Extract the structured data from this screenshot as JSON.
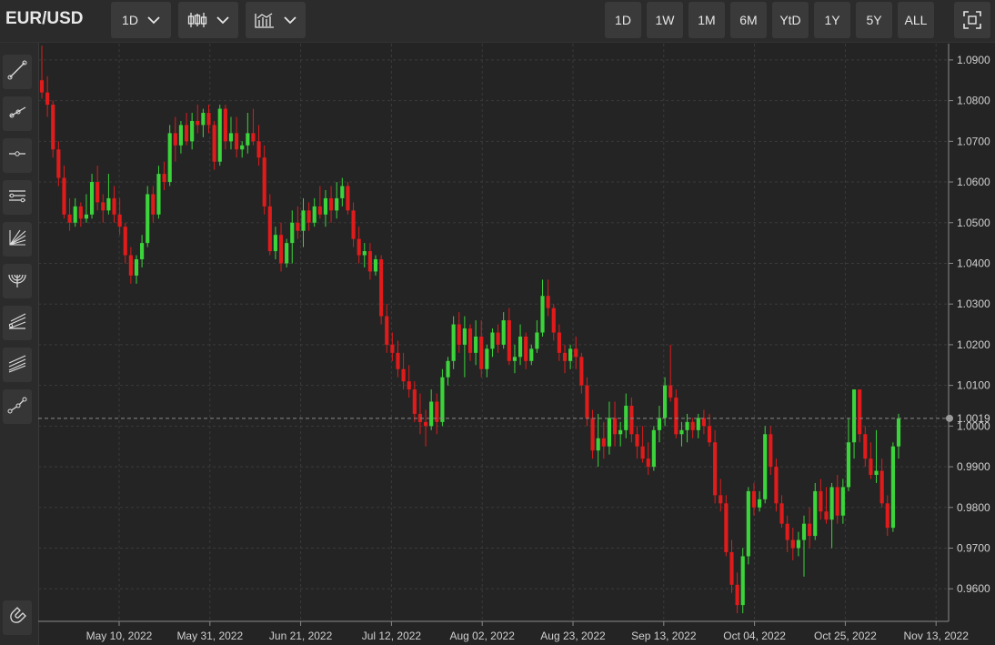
{
  "symbol": "EUR/USD",
  "toolbar": {
    "interval_label": "1D",
    "chart_type_icon": "candlestick-icon",
    "indicators_icon": "indicators-icon",
    "ranges": [
      "1D",
      "1W",
      "1M",
      "6M",
      "YtD",
      "1Y",
      "5Y",
      "ALL"
    ],
    "fullscreen_icon": "fullscreen-icon"
  },
  "sidebar_tools": [
    "trend-line-icon",
    "ray-icon",
    "horizontal-line-icon",
    "parallel-channel-icon",
    "gann-fan-icon",
    "arc-icon",
    "pitchfork-icon",
    "fib-channel-icon",
    "path-icon"
  ],
  "magnet_icon": "magnet-icon",
  "colors": {
    "up": "#3bd43b",
    "down": "#e01b1b",
    "grid": "#3a3a3a",
    "last_price_line": "#8a8a8a"
  },
  "chart_data": {
    "type": "candlestick",
    "symbol": "EUR/USD",
    "interval": "1D",
    "ylim": [
      0.952,
      1.094
    ],
    "yticks": [
      "1.0900",
      "1.0800",
      "1.0700",
      "1.0600",
      "1.0500",
      "1.0400",
      "1.0300",
      "1.0200",
      "1.0100",
      "1.0000",
      "0.9900",
      "0.9800",
      "0.9700",
      "0.9600"
    ],
    "last_price": "1.0019",
    "grid": true,
    "xticks": [
      "May 10, 2022",
      "May 31, 2022",
      "Jun 21, 2022",
      "Jul 12, 2022",
      "Aug 02, 2022",
      "Aug 23, 2022",
      "Sep 13, 2022",
      "Oct 04, 2022",
      "Oct 25, 2022",
      "Nov 13, 2022"
    ],
    "candles": [
      [
        1.085,
        1.0935,
        1.0805,
        1.082
      ],
      [
        1.082,
        1.086,
        1.076,
        1.079
      ],
      [
        1.079,
        1.08,
        1.066,
        1.068
      ],
      [
        1.068,
        1.07,
        1.059,
        1.061
      ],
      [
        1.061,
        1.064,
        1.051,
        1.052
      ],
      [
        1.052,
        1.056,
        1.048,
        1.05
      ],
      [
        1.05,
        1.056,
        1.049,
        1.054
      ],
      [
        1.054,
        1.055,
        1.049,
        1.051
      ],
      [
        1.051,
        1.057,
        1.05,
        1.052
      ],
      [
        1.052,
        1.062,
        1.051,
        1.06
      ],
      [
        1.06,
        1.064,
        1.053,
        1.055
      ],
      [
        1.055,
        1.057,
        1.05,
        1.053
      ],
      [
        1.053,
        1.062,
        1.052,
        1.056
      ],
      [
        1.056,
        1.059,
        1.05,
        1.052
      ],
      [
        1.052,
        1.056,
        1.047,
        1.049
      ],
      [
        1.049,
        1.05,
        1.04,
        1.042
      ],
      [
        1.042,
        1.044,
        1.035,
        1.037
      ],
      [
        1.037,
        1.042,
        1.035,
        1.041
      ],
      [
        1.041,
        1.047,
        1.039,
        1.045
      ],
      [
        1.045,
        1.059,
        1.044,
        1.057
      ],
      [
        1.057,
        1.059,
        1.05,
        1.052
      ],
      [
        1.052,
        1.064,
        1.051,
        1.062
      ],
      [
        1.062,
        1.065,
        1.058,
        1.06
      ],
      [
        1.06,
        1.074,
        1.059,
        1.072
      ],
      [
        1.072,
        1.076,
        1.065,
        1.069
      ],
      [
        1.069,
        1.075,
        1.067,
        1.074
      ],
      [
        1.074,
        1.077,
        1.069,
        1.07
      ],
      [
        1.07,
        1.077,
        1.068,
        1.075
      ],
      [
        1.075,
        1.079,
        1.072,
        1.074
      ],
      [
        1.074,
        1.078,
        1.071,
        1.077
      ],
      [
        1.077,
        1.079,
        1.072,
        1.074
      ],
      [
        1.074,
        1.075,
        1.063,
        1.065
      ],
      [
        1.065,
        1.079,
        1.064,
        1.078
      ],
      [
        1.078,
        1.079,
        1.068,
        1.07
      ],
      [
        1.07,
        1.076,
        1.068,
        1.072
      ],
      [
        1.072,
        1.076,
        1.066,
        1.068
      ],
      [
        1.068,
        1.07,
        1.066,
        1.069
      ],
      [
        1.069,
        1.077,
        1.067,
        1.072
      ],
      [
        1.072,
        1.078,
        1.069,
        1.07
      ],
      [
        1.07,
        1.074,
        1.064,
        1.066
      ],
      [
        1.066,
        1.069,
        1.052,
        1.054
      ],
      [
        1.054,
        1.057,
        1.042,
        1.043
      ],
      [
        1.043,
        1.049,
        1.041,
        1.047
      ],
      [
        1.047,
        1.05,
        1.038,
        1.04
      ],
      [
        1.04,
        1.046,
        1.039,
        1.045
      ],
      [
        1.045,
        1.053,
        1.04,
        1.05
      ],
      [
        1.05,
        1.054,
        1.046,
        1.048
      ],
      [
        1.048,
        1.056,
        1.044,
        1.053
      ],
      [
        1.053,
        1.055,
        1.048,
        1.05
      ],
      [
        1.05,
        1.056,
        1.049,
        1.054
      ],
      [
        1.054,
        1.059,
        1.051,
        1.052
      ],
      [
        1.052,
        1.058,
        1.049,
        1.056
      ],
      [
        1.056,
        1.059,
        1.05,
        1.053
      ],
      [
        1.053,
        1.06,
        1.051,
        1.056
      ],
      [
        1.056,
        1.061,
        1.054,
        1.059
      ],
      [
        1.059,
        1.06,
        1.052,
        1.053
      ],
      [
        1.053,
        1.055,
        1.044,
        1.046
      ],
      [
        1.046,
        1.049,
        1.04,
        1.042
      ],
      [
        1.042,
        1.045,
        1.039,
        1.043
      ],
      [
        1.043,
        1.045,
        1.036,
        1.038
      ],
      [
        1.038,
        1.042,
        1.037,
        1.041
      ],
      [
        1.041,
        1.042,
        1.025,
        1.027
      ],
      [
        1.027,
        1.03,
        1.018,
        1.02
      ],
      [
        1.02,
        1.023,
        1.016,
        1.018
      ],
      [
        1.018,
        1.021,
        1.012,
        1.014
      ],
      [
        1.014,
        1.018,
        1.009,
        1.011
      ],
      [
        1.011,
        1.015,
        1.007,
        1.009
      ],
      [
        1.009,
        1.011,
        1.001,
        1.003
      ],
      [
        1.003,
        1.008,
        0.998,
        1.001
      ],
      [
        1.001,
        1.004,
        0.995,
        1.0
      ],
      [
        1.0,
        1.009,
        0.999,
        1.006
      ],
      [
        1.006,
        1.008,
        0.998,
        1.001
      ],
      [
        1.001,
        1.014,
        1.0,
        1.012
      ],
      [
        1.012,
        1.017,
        1.01,
        1.016
      ],
      [
        1.016,
        1.027,
        1.014,
        1.025
      ],
      [
        1.025,
        1.028,
        1.018,
        1.02
      ],
      [
        1.02,
        1.027,
        1.012,
        1.024
      ],
      [
        1.024,
        1.025,
        1.016,
        1.018
      ],
      [
        1.018,
        1.026,
        1.015,
        1.022
      ],
      [
        1.022,
        1.026,
        1.012,
        1.014
      ],
      [
        1.014,
        1.02,
        1.012,
        1.019
      ],
      [
        1.019,
        1.024,
        1.017,
        1.023
      ],
      [
        1.023,
        1.025,
        1.018,
        1.02
      ],
      [
        1.02,
        1.028,
        1.019,
        1.026
      ],
      [
        1.026,
        1.029,
        1.015,
        1.016
      ],
      [
        1.016,
        1.02,
        1.013,
        1.017
      ],
      [
        1.017,
        1.025,
        1.015,
        1.022
      ],
      [
        1.022,
        1.023,
        1.014,
        1.016
      ],
      [
        1.016,
        1.02,
        1.015,
        1.019
      ],
      [
        1.019,
        1.026,
        1.018,
        1.023
      ],
      [
        1.023,
        1.036,
        1.022,
        1.032
      ],
      [
        1.032,
        1.036,
        1.027,
        1.029
      ],
      [
        1.029,
        1.03,
        1.021,
        1.023
      ],
      [
        1.023,
        1.025,
        1.016,
        1.018
      ],
      [
        1.018,
        1.02,
        1.013,
        1.016
      ],
      [
        1.016,
        1.02,
        1.014,
        1.019
      ],
      [
        1.019,
        1.022,
        1.014,
        1.017
      ],
      [
        1.017,
        1.018,
        1.008,
        1.01
      ],
      [
        1.01,
        1.012,
        1.0,
        1.002
      ],
      [
        1.002,
        1.004,
        0.992,
        0.994
      ],
      [
        0.994,
        1.003,
        0.99,
        0.997
      ],
      [
        0.997,
        1.001,
        0.992,
        0.995
      ],
      [
        0.995,
        1.006,
        0.993,
        1.002
      ],
      [
        1.002,
        1.006,
        0.995,
        0.998
      ],
      [
        0.998,
        1.001,
        0.995,
        0.999
      ],
      [
        0.999,
        1.008,
        0.997,
        1.005
      ],
      [
        1.005,
        1.007,
        0.996,
        0.998
      ],
      [
        0.998,
        1.0,
        0.992,
        0.995
      ],
      [
        0.995,
        1.0,
        0.991,
        0.992
      ],
      [
        0.992,
        0.996,
        0.988,
        0.99
      ],
      [
        0.99,
        1.0,
        0.989,
        0.999
      ],
      [
        0.999,
        1.005,
        0.996,
        1.002
      ],
      [
        1.002,
        1.012,
        1.0,
        1.01
      ],
      [
        1.01,
        1.02,
        1.006,
        1.007
      ],
      [
        1.007,
        1.009,
        0.997,
        0.998
      ],
      [
        0.998,
        1.001,
        0.995,
        0.999
      ],
      [
        0.999,
        1.003,
        0.996,
        1.001
      ],
      [
        1.001,
        1.002,
        0.997,
        0.999
      ],
      [
        0.999,
        1.003,
        0.997,
        1.002
      ],
      [
        1.002,
        1.004,
        0.998,
        1.0
      ],
      [
        1.0,
        1.003,
        0.995,
        0.996
      ],
      [
        0.996,
        0.999,
        0.981,
        0.983
      ],
      [
        0.983,
        0.987,
        0.979,
        0.981
      ],
      [
        0.981,
        0.983,
        0.968,
        0.969
      ],
      [
        0.969,
        0.972,
        0.959,
        0.961
      ],
      [
        0.961,
        0.964,
        0.954,
        0.956
      ],
      [
        0.956,
        0.97,
        0.954,
        0.968
      ],
      [
        0.968,
        0.985,
        0.966,
        0.984
      ],
      [
        0.984,
        0.986,
        0.978,
        0.98
      ],
      [
        0.98,
        0.984,
        0.979,
        0.982
      ],
      [
        0.982,
        1.0,
        0.981,
        0.998
      ],
      [
        0.998,
        1.0,
        0.988,
        0.99
      ],
      [
        0.99,
        0.992,
        0.979,
        0.981
      ],
      [
        0.981,
        0.983,
        0.975,
        0.976
      ],
      [
        0.976,
        0.978,
        0.969,
        0.972
      ],
      [
        0.972,
        0.975,
        0.967,
        0.97
      ],
      [
        0.97,
        0.974,
        0.968,
        0.972
      ],
      [
        0.972,
        0.978,
        0.963,
        0.976
      ],
      [
        0.976,
        0.98,
        0.97,
        0.973
      ],
      [
        0.973,
        0.986,
        0.972,
        0.984
      ],
      [
        0.984,
        0.987,
        0.977,
        0.979
      ],
      [
        0.979,
        0.985,
        0.976,
        0.977
      ],
      [
        0.977,
        0.986,
        0.97,
        0.985
      ],
      [
        0.985,
        0.988,
        0.976,
        0.978
      ],
      [
        0.978,
        0.987,
        0.976,
        0.985
      ],
      [
        0.985,
        1.002,
        0.984,
        0.996
      ],
      [
        0.996,
        1.009,
        0.992,
        1.009
      ],
      [
        1.009,
        1.009,
        0.996,
        0.998
      ],
      [
        0.998,
        1.0,
        0.99,
        0.992
      ],
      [
        0.992,
        0.996,
        0.987,
        0.988
      ],
      [
        0.988,
        0.999,
        0.986,
        0.989
      ],
      [
        0.989,
        0.992,
        0.98,
        0.981
      ],
      [
        0.981,
        0.983,
        0.973,
        0.975
      ],
      [
        0.975,
        0.996,
        0.974,
        0.995
      ],
      [
        0.995,
        1.003,
        0.992,
        1.0019
      ]
    ]
  }
}
